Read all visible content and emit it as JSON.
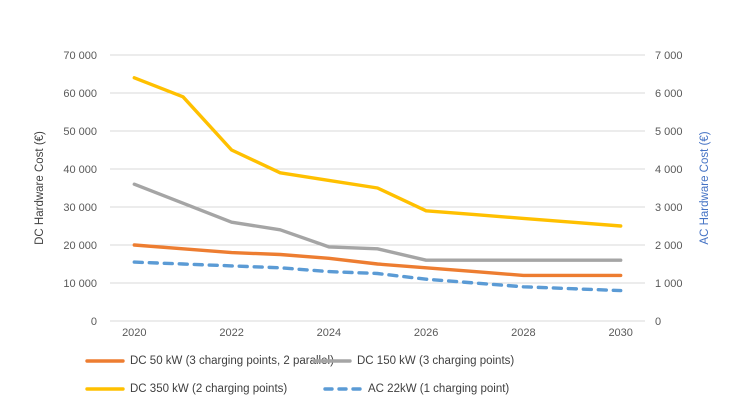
{
  "chart_data": {
    "type": "line",
    "x": [
      2020,
      2021,
      2022,
      2023,
      2024,
      2025,
      2026,
      2027,
      2028,
      2029,
      2030
    ],
    "x_tick_labels": [
      "2020",
      "2022",
      "2024",
      "2026",
      "2028",
      "2030"
    ],
    "left_axis": {
      "label": "DC Hardware Cost (€)",
      "label_color": "#404040",
      "min": 0,
      "max": 70000,
      "tick_step": 10000,
      "tick_labels": [
        "0",
        "10 000",
        "20 000",
        "30 000",
        "40 000",
        "50 000",
        "60 000",
        "70 000"
      ]
    },
    "right_axis": {
      "label": "AC Hardware Cost (€)",
      "label_color": "#4472C4",
      "min": 0,
      "max": 7000,
      "tick_step": 1000,
      "tick_labels": [
        "0",
        "1 000",
        "2 000",
        "3 000",
        "4 000",
        "5 000",
        "6 000",
        "7 000"
      ]
    },
    "grid": true,
    "gridline_color": "#D9D9D9",
    "legend_position": "bottom",
    "series": [
      {
        "name": "DC 50 kW (3 charging points, 2 parallel)",
        "axis": "left",
        "color": "#ED7D31",
        "style": "solid",
        "values": [
          20000,
          19000,
          18000,
          17500,
          16500,
          15000,
          14000,
          13000,
          12000,
          12000,
          12000
        ]
      },
      {
        "name": "DC 150 kW (3 charging points)",
        "axis": "left",
        "color": "#A5A5A5",
        "style": "solid",
        "values": [
          36000,
          31000,
          26000,
          24000,
          19500,
          19000,
          16000,
          16000,
          16000,
          16000,
          16000
        ]
      },
      {
        "name": "DC 350 kW (2 charging points)",
        "axis": "left",
        "color": "#FFC000",
        "style": "solid",
        "values": [
          64000,
          59000,
          45000,
          39000,
          37000,
          35000,
          29000,
          28000,
          27000,
          26000,
          25000
        ]
      },
      {
        "name": "AC 22kW (1 charging point)",
        "axis": "right",
        "color": "#5B9BD5",
        "style": "dashed",
        "values": [
          1550,
          1500,
          1450,
          1400,
          1300,
          1250,
          1100,
          1000,
          900,
          850,
          800
        ]
      }
    ]
  }
}
